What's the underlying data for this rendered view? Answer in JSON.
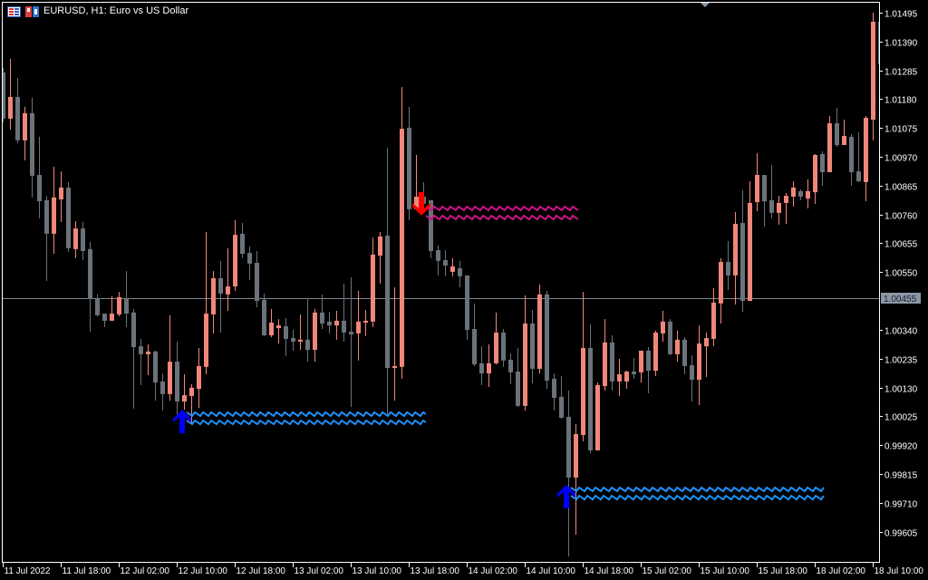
{
  "header": {
    "title": "EURUSD, H1:  Euro vs US Dollar",
    "icons": [
      "chart-list-icon",
      "market-watch-icon"
    ]
  },
  "colors": {
    "background": "#000000",
    "bull": "#f0877a",
    "bear": "#6b7279",
    "axis": "#ffffff",
    "current_price_line": "#7d8790",
    "current_price_box": "#8c97a3",
    "buy_arrow": "#0000ff",
    "buy_line": "#1e90ff",
    "sell_arrow": "#ff0000",
    "sell_line": "#c71585"
  },
  "chart_data": {
    "type": "candlestick",
    "symbol": "EURUSD",
    "timeframe": "H1",
    "ylim": [
      0.99495,
      1.01541
    ],
    "grid": false,
    "y_ticks": [
      "1.01495",
      "1.01390",
      "1.01285",
      "1.01180",
      "1.01075",
      "1.00970",
      "1.00865",
      "1.00760",
      "1.00655",
      "1.00550",
      "1.00340",
      "1.00235",
      "1.00130",
      "1.00025",
      "0.99920",
      "0.99815",
      "0.99710",
      "0.99605"
    ],
    "x_tick_labels": [
      "11 Jul 2022",
      "11 Jul 18:00",
      "12 Jul 02:00",
      "12 Jul 10:00",
      "12 Jul 18:00",
      "13 Jul 02:00",
      "13 Jul 10:00",
      "13 Jul 18:00",
      "14 Jul 02:00",
      "14 Jul 10:00",
      "14 Jul 18:00",
      "15 Jul 02:00",
      "15 Jul 10:00",
      "15 Jul 18:00",
      "18 Jul 02:00",
      "18 Jul 10:00"
    ],
    "current_price": "1.00455",
    "ohlc": [
      [
        1.01277,
        1.01294,
        1.01096,
        1.01109
      ],
      [
        1.01109,
        1.01327,
        1.01069,
        1.01188
      ],
      [
        1.01188,
        1.01257,
        1.0102,
        1.0103
      ],
      [
        1.0103,
        1.01152,
        1.00957,
        1.01129
      ],
      [
        1.01129,
        1.01185,
        1.00822,
        1.00901
      ],
      [
        1.00904,
        1.01043,
        1.00746,
        1.00808
      ],
      [
        1.00812,
        1.00828,
        1.00518,
        1.0069
      ],
      [
        1.0069,
        1.00934,
        1.00617,
        1.00822
      ],
      [
        1.00815,
        1.00917,
        1.00733,
        1.00858
      ],
      [
        1.00858,
        1.00878,
        1.00624,
        1.00637
      ],
      [
        1.00634,
        1.00736,
        1.00601,
        1.00709
      ],
      [
        1.00709,
        1.00733,
        1.00594,
        1.00627
      ],
      [
        1.00634,
        1.0066,
        1.00333,
        1.00452
      ],
      [
        1.00455,
        1.00469,
        1.00389,
        1.00393
      ],
      [
        1.00399,
        1.00399,
        1.0035,
        1.00373
      ],
      [
        1.00373,
        1.00462,
        1.00373,
        1.00399
      ],
      [
        1.00396,
        1.00478,
        1.00389,
        1.00459
      ],
      [
        1.00455,
        1.00554,
        1.0035,
        1.00399
      ],
      [
        1.00403,
        1.00416,
        1.00053,
        1.00277
      ],
      [
        1.0028,
        1.00307,
        1.00139,
        1.00251
      ],
      [
        1.00251,
        1.00287,
        1.00175,
        1.00261
      ],
      [
        1.00261,
        1.00264,
        1.00082,
        1.00148
      ],
      [
        1.00152,
        1.00181,
        1.00046,
        1.00106
      ],
      [
        1.00106,
        1.00393,
        1.00082,
        1.00224
      ],
      [
        1.00224,
        1.00297,
        1.00033,
        1.00079
      ],
      [
        1.00079,
        1.00178,
        1.00049,
        1.00102
      ],
      [
        1.00099,
        1.00142,
        0.99997,
        1.00129
      ],
      [
        1.00125,
        1.00274,
        1.00056,
        1.00208
      ],
      [
        1.00205,
        1.00696,
        1.00178,
        1.00399
      ],
      [
        1.00396,
        1.00554,
        1.00327,
        1.00528
      ],
      [
        1.00528,
        1.00591,
        1.0033,
        1.00472
      ],
      [
        1.00469,
        1.00637,
        1.00409,
        1.00498
      ],
      [
        1.00498,
        1.00739,
        1.00482,
        1.00686
      ],
      [
        1.0069,
        1.00729,
        1.00601,
        1.00617
      ],
      [
        1.0062,
        1.00643,
        1.00521,
        1.00581
      ],
      [
        1.00584,
        1.00627,
        1.00422,
        1.00445
      ],
      [
        1.00449,
        1.00472,
        1.00317,
        1.0032
      ],
      [
        1.0032,
        1.00416,
        1.00313,
        1.00366
      ],
      [
        1.00346,
        1.00379,
        1.0029,
        1.00356
      ],
      [
        1.00353,
        1.00383,
        1.00244,
        1.00307
      ],
      [
        1.0031,
        1.0034,
        1.00264,
        1.00297
      ],
      [
        1.00297,
        1.00396,
        1.00267,
        1.00304
      ],
      [
        1.00304,
        1.00455,
        1.00224,
        1.00267
      ],
      [
        1.00267,
        1.00416,
        1.00224,
        1.00403
      ],
      [
        1.00403,
        1.00469,
        1.00343,
        1.00363
      ],
      [
        1.0037,
        1.00406,
        1.00327,
        1.00356
      ],
      [
        1.00356,
        1.00409,
        1.00304,
        1.00373
      ],
      [
        1.00373,
        1.00508,
        1.00297,
        1.0033
      ],
      [
        1.00333,
        1.00531,
        1.00059,
        1.00323
      ],
      [
        1.00327,
        1.00482,
        1.00228,
        1.0037
      ],
      [
        1.00366,
        1.00412,
        1.00317,
        1.00373
      ],
      [
        1.0037,
        1.00676,
        1.0035,
        1.00614
      ],
      [
        1.0061,
        1.00696,
        1.00508,
        1.0068
      ],
      [
        1.00683,
        1.01003,
        1.0003,
        1.00201
      ],
      [
        1.00201,
        1.00495,
        1.00082,
        1.00208
      ],
      [
        1.00205,
        1.01224,
        1.00162,
        1.01072
      ],
      [
        1.01076,
        1.01152,
        1.00739,
        1.00779
      ],
      [
        1.00779,
        1.00977,
        1.00779,
        1.00825
      ],
      [
        1.00825,
        1.00878,
        1.00789,
        1.00799
      ],
      [
        1.00812,
        1.00812,
        1.00601,
        1.00627
      ],
      [
        1.0063,
        1.00647,
        1.00538,
        1.00591
      ],
      [
        1.00594,
        1.0063,
        1.00535,
        1.00574
      ],
      [
        1.00551,
        1.00601,
        1.00535,
        1.00571
      ],
      [
        1.00564,
        1.00591,
        1.00495,
        1.00535
      ],
      [
        1.00538,
        1.00538,
        1.00304,
        1.0034
      ],
      [
        1.00343,
        1.00436,
        1.00208,
        1.00214
      ],
      [
        1.00218,
        1.0028,
        1.00139,
        1.00181
      ],
      [
        1.00181,
        1.00287,
        1.00132,
        1.00218
      ],
      [
        1.00218,
        1.00403,
        1.00214,
        1.0033
      ],
      [
        1.0033,
        1.00343,
        1.00205,
        1.00228
      ],
      [
        1.00231,
        1.00254,
        1.00142,
        1.00185
      ],
      [
        1.00188,
        1.00274,
        1.00059,
        1.00063
      ],
      [
        1.00063,
        1.00465,
        1.00046,
        1.00363
      ],
      [
        1.00363,
        1.00412,
        1.00145,
        1.00198
      ],
      [
        1.00198,
        1.00505,
        1.00181,
        1.00469
      ],
      [
        1.00469,
        1.00482,
        1.00125,
        1.00155
      ],
      [
        1.00162,
        1.00181,
        1.00046,
        1.00092
      ],
      [
        1.00096,
        1.00172,
        1.00016,
        1.0002
      ],
      [
        1.00023,
        1.00119,
        0.99515,
        0.99802
      ],
      [
        0.99802,
        0.99997,
        0.99594,
        0.9996
      ],
      [
        0.99957,
        1.00478,
        0.99934,
        1.00274
      ],
      [
        1.00274,
        1.0036,
        0.99891,
        0.99901
      ],
      [
        0.99901,
        1.00148,
        0.99901,
        1.00139
      ],
      [
        1.00135,
        1.00379,
        1.00119,
        1.00294
      ],
      [
        1.00294,
        1.0032,
        1.00119,
        1.00152
      ],
      [
        1.00152,
        1.00234,
        1.00099,
        1.00178
      ],
      [
        1.00152,
        1.00191,
        1.00125,
        1.00188
      ],
      [
        1.00188,
        1.00238,
        1.00162,
        1.00178
      ],
      [
        1.00185,
        1.00264,
        1.00148,
        1.00264
      ],
      [
        1.00264,
        1.00277,
        1.00109,
        1.00191
      ],
      [
        1.00191,
        1.00337,
        1.00172,
        1.0033
      ],
      [
        1.00327,
        1.00409,
        1.00297,
        1.0037
      ],
      [
        1.0037,
        1.00379,
        1.00247,
        1.00251
      ],
      [
        1.00251,
        1.00337,
        1.00224,
        1.00304
      ],
      [
        1.00304,
        1.00313,
        1.00178,
        1.00208
      ],
      [
        1.00211,
        1.00247,
        1.00079,
        1.00158
      ],
      [
        1.00158,
        1.00356,
        1.00066,
        1.0029
      ],
      [
        1.0028,
        1.0033,
        1.00168,
        1.0031
      ],
      [
        1.00307,
        1.00492,
        1.0028,
        1.00439
      ],
      [
        1.00436,
        1.00601,
        1.00363,
        1.00587
      ],
      [
        1.00587,
        1.00663,
        1.00485,
        1.00538
      ],
      [
        1.00538,
        1.00769,
        1.00432,
        1.00726
      ],
      [
        1.00729,
        1.00848,
        1.00406,
        1.00445
      ],
      [
        1.00445,
        1.00881,
        1.00445,
        1.00802
      ],
      [
        1.00805,
        1.00983,
        1.00772,
        1.00904
      ],
      [
        1.00904,
        1.00904,
        1.00716,
        1.00808
      ],
      [
        1.00812,
        1.0094,
        1.00746,
        1.00766
      ],
      [
        1.00766,
        1.00828,
        1.00723,
        1.00802
      ],
      [
        1.00802,
        1.00838,
        1.00726,
        1.00828
      ],
      [
        1.00825,
        1.00881,
        1.00789,
        1.00858
      ],
      [
        1.00845,
        1.00851,
        1.00812,
        1.00825
      ],
      [
        1.00818,
        1.00888,
        1.00782,
        1.00845
      ],
      [
        1.00841,
        1.0098,
        1.00799,
        1.00977
      ],
      [
        1.0098,
        1.0099,
        1.00865,
        1.00914
      ],
      [
        1.00914,
        1.01119,
        1.00914,
        1.01092
      ],
      [
        1.01092,
        1.01148,
        1.01006,
        1.01013
      ],
      [
        1.01013,
        1.01105,
        1.01013,
        1.01046
      ],
      [
        1.01043,
        1.01053,
        1.00865,
        1.00914
      ],
      [
        1.00917,
        1.01059,
        1.00878,
        1.00881
      ],
      [
        1.00878,
        1.01119,
        1.00808,
        1.01112
      ],
      [
        1.01105,
        1.01495,
        1.0103,
        1.01462
      ],
      [
        1.01462,
        1.01495,
        1.01201,
        1.01307
      ]
    ],
    "signals": [
      {
        "type": "buy",
        "bar": 25,
        "price": 1.00049,
        "levels": [
          1.00033,
          1.00003
        ],
        "line_end_bar": 58
      },
      {
        "type": "sell",
        "bar": 58,
        "price": 1.00756,
        "levels": [
          1.00782,
          1.00749
        ],
        "line_end_bar": 79
      },
      {
        "type": "buy",
        "bar": 78,
        "price": 0.99776,
        "levels": [
          0.99759,
          0.99729
        ],
        "line_end_bar": 113
      }
    ]
  }
}
